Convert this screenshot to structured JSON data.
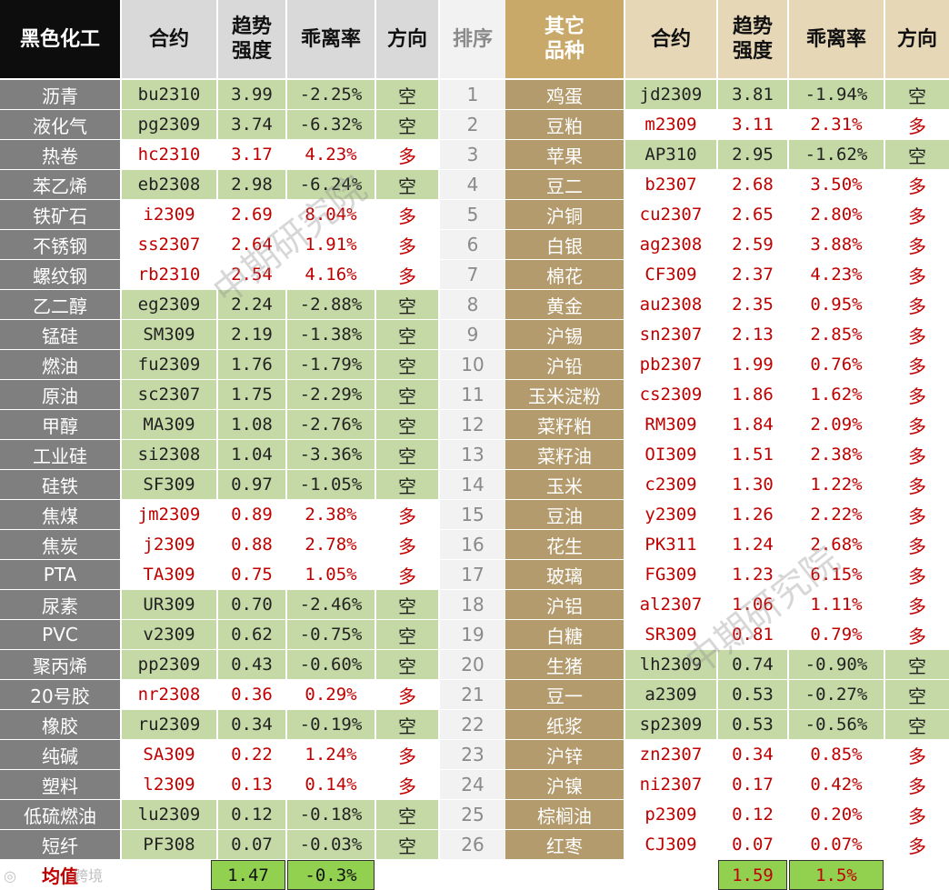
{
  "colors": {
    "black_header_bg": "#0d0d0d",
    "left_name_bg": "#7f7f7f",
    "gray_header_bg": "#d9d9d9",
    "rank_bg": "#f2f2f2",
    "gold_header_bg": "#c9a96a",
    "right_name_bg": "#b39b6e",
    "beige_header_bg": "#e6d7b6",
    "green_row_bg": "#c5d9a6",
    "red_text": "#c00000",
    "dark_text": "#222222",
    "footer_green": "#92d050"
  },
  "headers": {
    "left_category": "黑色化工",
    "contract": "合约",
    "strength_line1": "趋势",
    "strength_line2": "强度",
    "deviation": "乖离率",
    "direction": "方向",
    "rank": "排序",
    "right_category_line1": "其它",
    "right_category_line2": "品种"
  },
  "left_rows": [
    {
      "name": "沥青",
      "contract": "bu2310",
      "strength": "3.99",
      "deviation": "-2.25%",
      "direction": "空"
    },
    {
      "name": "液化气",
      "contract": "pg2309",
      "strength": "3.74",
      "deviation": "-6.32%",
      "direction": "空"
    },
    {
      "name": "热卷",
      "contract": "hc2310",
      "strength": "3.17",
      "deviation": "4.23%",
      "direction": "多"
    },
    {
      "name": "苯乙烯",
      "contract": "eb2308",
      "strength": "2.98",
      "deviation": "-6.24%",
      "direction": "空"
    },
    {
      "name": "铁矿石",
      "contract": "i2309",
      "strength": "2.69",
      "deviation": "8.04%",
      "direction": "多"
    },
    {
      "name": "不锈钢",
      "contract": "ss2307",
      "strength": "2.64",
      "deviation": "1.91%",
      "direction": "多"
    },
    {
      "name": "螺纹钢",
      "contract": "rb2310",
      "strength": "2.54",
      "deviation": "4.16%",
      "direction": "多"
    },
    {
      "name": "乙二醇",
      "contract": "eg2309",
      "strength": "2.24",
      "deviation": "-2.88%",
      "direction": "空"
    },
    {
      "name": "锰硅",
      "contract": "SM309",
      "strength": "2.19",
      "deviation": "-1.38%",
      "direction": "空"
    },
    {
      "name": "燃油",
      "contract": "fu2309",
      "strength": "1.76",
      "deviation": "-1.79%",
      "direction": "空"
    },
    {
      "name": "原油",
      "contract": "sc2307",
      "strength": "1.75",
      "deviation": "-2.29%",
      "direction": "空"
    },
    {
      "name": "甲醇",
      "contract": "MA309",
      "strength": "1.08",
      "deviation": "-2.76%",
      "direction": "空"
    },
    {
      "name": "工业硅",
      "contract": "si2308",
      "strength": "1.04",
      "deviation": "-3.36%",
      "direction": "空"
    },
    {
      "name": "硅铁",
      "contract": "SF309",
      "strength": "0.97",
      "deviation": "-1.05%",
      "direction": "空"
    },
    {
      "name": "焦煤",
      "contract": "jm2309",
      "strength": "0.89",
      "deviation": "2.38%",
      "direction": "多"
    },
    {
      "name": "焦炭",
      "contract": "j2309",
      "strength": "0.88",
      "deviation": "2.78%",
      "direction": "多"
    },
    {
      "name": "PTA",
      "contract": "TA309",
      "strength": "0.75",
      "deviation": "1.05%",
      "direction": "多"
    },
    {
      "name": "尿素",
      "contract": "UR309",
      "strength": "0.70",
      "deviation": "-2.46%",
      "direction": "空"
    },
    {
      "name": "PVC",
      "contract": "v2309",
      "strength": "0.62",
      "deviation": "-0.75%",
      "direction": "空"
    },
    {
      "name": "聚丙烯",
      "contract": "pp2309",
      "strength": "0.43",
      "deviation": "-0.60%",
      "direction": "空"
    },
    {
      "name": "20号胶",
      "contract": "nr2308",
      "strength": "0.36",
      "deviation": "0.29%",
      "direction": "多"
    },
    {
      "name": "橡胶",
      "contract": "ru2309",
      "strength": "0.34",
      "deviation": "-0.19%",
      "direction": "空"
    },
    {
      "name": "纯碱",
      "contract": "SA309",
      "strength": "0.22",
      "deviation": "1.24%",
      "direction": "多"
    },
    {
      "name": "塑料",
      "contract": "l2309",
      "strength": "0.13",
      "deviation": "0.14%",
      "direction": "多"
    },
    {
      "name": "低硫燃油",
      "contract": "lu2309",
      "strength": "0.12",
      "deviation": "-0.18%",
      "direction": "空"
    },
    {
      "name": "短纤",
      "contract": "PF308",
      "strength": "0.07",
      "deviation": "-0.03%",
      "direction": "空"
    }
  ],
  "ranks": [
    "1",
    "2",
    "3",
    "4",
    "5",
    "6",
    "7",
    "8",
    "9",
    "10",
    "11",
    "12",
    "13",
    "14",
    "15",
    "16",
    "17",
    "18",
    "19",
    "20",
    "21",
    "22",
    "23",
    "24",
    "25",
    "26"
  ],
  "right_rows": [
    {
      "name": "鸡蛋",
      "contract": "jd2309",
      "strength": "3.81",
      "deviation": "-1.94%",
      "direction": "空"
    },
    {
      "name": "豆粕",
      "contract": "m2309",
      "strength": "3.11",
      "deviation": "2.31%",
      "direction": "多"
    },
    {
      "name": "苹果",
      "contract": "AP310",
      "strength": "2.95",
      "deviation": "-1.62%",
      "direction": "空"
    },
    {
      "name": "豆二",
      "contract": "b2307",
      "strength": "2.68",
      "deviation": "3.50%",
      "direction": "多"
    },
    {
      "name": "沪铜",
      "contract": "cu2307",
      "strength": "2.65",
      "deviation": "2.80%",
      "direction": "多"
    },
    {
      "name": "白银",
      "contract": "ag2308",
      "strength": "2.59",
      "deviation": "3.88%",
      "direction": "多"
    },
    {
      "name": "棉花",
      "contract": "CF309",
      "strength": "2.37",
      "deviation": "4.23%",
      "direction": "多"
    },
    {
      "name": "黄金",
      "contract": "au2308",
      "strength": "2.35",
      "deviation": "0.95%",
      "direction": "多"
    },
    {
      "name": "沪锡",
      "contract": "sn2307",
      "strength": "2.13",
      "deviation": "2.85%",
      "direction": "多"
    },
    {
      "name": "沪铅",
      "contract": "pb2307",
      "strength": "1.99",
      "deviation": "0.76%",
      "direction": "多"
    },
    {
      "name": "玉米淀粉",
      "contract": "cs2309",
      "strength": "1.86",
      "deviation": "1.62%",
      "direction": "多"
    },
    {
      "name": "菜籽粕",
      "contract": "RM309",
      "strength": "1.84",
      "deviation": "2.09%",
      "direction": "多"
    },
    {
      "name": "菜籽油",
      "contract": "OI309",
      "strength": "1.51",
      "deviation": "2.38%",
      "direction": "多"
    },
    {
      "name": "玉米",
      "contract": "c2309",
      "strength": "1.30",
      "deviation": "1.22%",
      "direction": "多"
    },
    {
      "name": "豆油",
      "contract": "y2309",
      "strength": "1.26",
      "deviation": "2.22%",
      "direction": "多"
    },
    {
      "name": "花生",
      "contract": "PK311",
      "strength": "1.24",
      "deviation": "2.68%",
      "direction": "多"
    },
    {
      "name": "玻璃",
      "contract": "FG309",
      "strength": "1.23",
      "deviation": "6.15%",
      "direction": "多"
    },
    {
      "name": "沪铝",
      "contract": "al2307",
      "strength": "1.06",
      "deviation": "1.11%",
      "direction": "多"
    },
    {
      "name": "白糖",
      "contract": "SR309",
      "strength": "0.81",
      "deviation": "0.79%",
      "direction": "多"
    },
    {
      "name": "生猪",
      "contract": "lh2309",
      "strength": "0.74",
      "deviation": "-0.90%",
      "direction": "空"
    },
    {
      "name": "豆一",
      "contract": "a2309",
      "strength": "0.53",
      "deviation": "-0.27%",
      "direction": "空"
    },
    {
      "name": "纸浆",
      "contract": "sp2309",
      "strength": "0.53",
      "deviation": "-0.56%",
      "direction": "空"
    },
    {
      "name": "沪锌",
      "contract": "zn2307",
      "strength": "0.34",
      "deviation": "0.85%",
      "direction": "多"
    },
    {
      "name": "沪镍",
      "contract": "ni2307",
      "strength": "0.17",
      "deviation": "0.42%",
      "direction": "多"
    },
    {
      "name": "棕榈油",
      "contract": "p2309",
      "strength": "0.12",
      "deviation": "0.20%",
      "direction": "多"
    },
    {
      "name": "红枣",
      "contract": "CJ309",
      "strength": "0.07",
      "deviation": "0.07%",
      "direction": "多"
    }
  ],
  "footer": {
    "label": "均值",
    "left_strength_avg": "1.47",
    "left_deviation_avg": "-0.3%",
    "right_strength_avg": "1.59",
    "right_deviation_avg": "1.5%"
  },
  "watermark": {
    "text": "中期研究院",
    "corner_text": "跨境"
  }
}
